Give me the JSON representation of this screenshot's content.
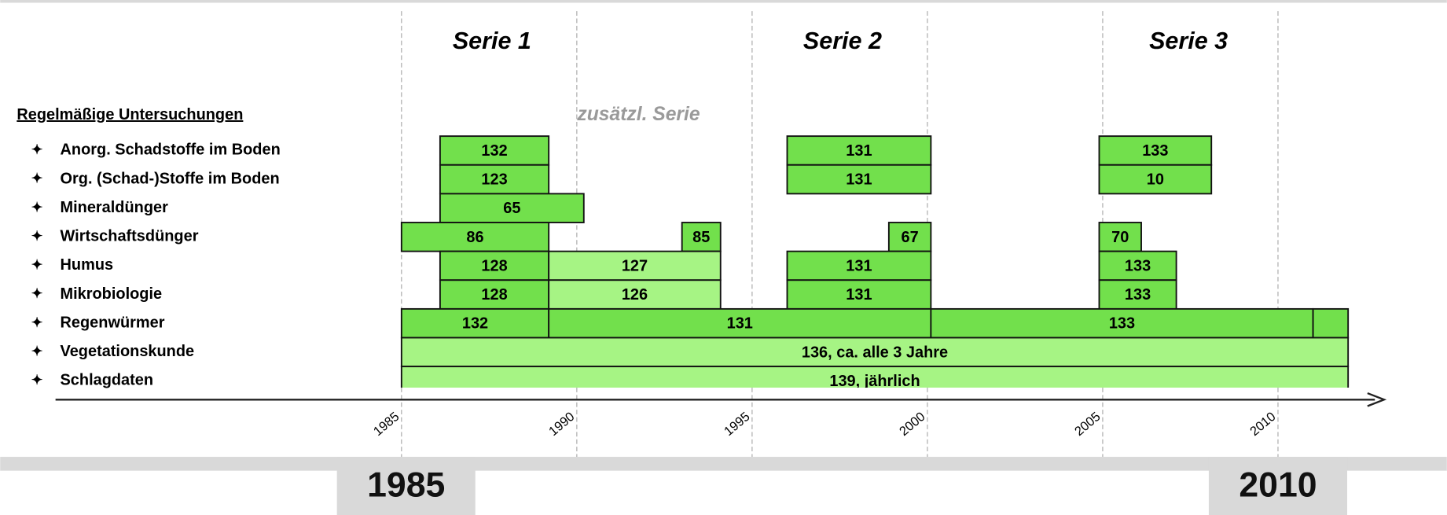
{
  "header": {
    "series_labels": [
      "Serie 1",
      "Serie 2",
      "Serie 3"
    ],
    "extra_series": "zusätzl. Serie",
    "section_title": "Regelmäßige Untersuchungen"
  },
  "timeline": {
    "xlim": [
      1985,
      2010
    ],
    "xticks": [
      1985,
      1990,
      1995,
      2000,
      2005,
      2010
    ],
    "rows": [
      {
        "label": "Anorg. Schadstoffe im Boden",
        "bars": [
          {
            "start": 1986.1,
            "end": 1989.2,
            "label": "132",
            "color": "#72e04c"
          },
          {
            "start": 1996.0,
            "end": 2000.1,
            "label": "131",
            "color": "#72e04c"
          },
          {
            "start": 2004.9,
            "end": 2008.1,
            "label": "133",
            "color": "#72e04c"
          }
        ]
      },
      {
        "label": "Org. (Schad-)Stoffe im Boden",
        "bars": [
          {
            "start": 1986.1,
            "end": 1989.2,
            "label": "123",
            "color": "#72e04c"
          },
          {
            "start": 1996.0,
            "end": 2000.1,
            "label": "131",
            "color": "#72e04c"
          },
          {
            "start": 2004.9,
            "end": 2008.1,
            "label": "10",
            "color": "#72e04c"
          }
        ]
      },
      {
        "label": "Mineraldünger",
        "bars": [
          {
            "start": 1986.1,
            "end": 1990.2,
            "label": "65",
            "color": "#72e04c"
          }
        ]
      },
      {
        "label": "Wirtschaftsdünger",
        "bars": [
          {
            "start": 1985.0,
            "end": 1989.2,
            "label": "86",
            "color": "#72e04c"
          },
          {
            "start": 1993.0,
            "end": 1994.1,
            "label": "85",
            "color": "#72e04c"
          },
          {
            "start": 1998.9,
            "end": 2000.1,
            "label": "67",
            "color": "#72e04c"
          },
          {
            "start": 2004.9,
            "end": 2006.1,
            "label": "70",
            "color": "#72e04c"
          }
        ]
      },
      {
        "label": "Humus",
        "bars": [
          {
            "start": 1986.1,
            "end": 1989.2,
            "label": "128",
            "color": "#72e04c"
          },
          {
            "start": 1989.2,
            "end": 1994.1,
            "label": "127",
            "color": "#a6f484"
          },
          {
            "start": 1996.0,
            "end": 2000.1,
            "label": "131",
            "color": "#72e04c"
          },
          {
            "start": 2004.9,
            "end": 2007.1,
            "label": "133",
            "color": "#72e04c"
          }
        ]
      },
      {
        "label": "Mikrobiologie",
        "bars": [
          {
            "start": 1986.1,
            "end": 1989.2,
            "label": "128",
            "color": "#72e04c"
          },
          {
            "start": 1989.2,
            "end": 1994.1,
            "label": "126",
            "color": "#a6f484"
          },
          {
            "start": 1996.0,
            "end": 2000.1,
            "label": "131",
            "color": "#72e04c"
          },
          {
            "start": 2004.9,
            "end": 2007.1,
            "label": "133",
            "color": "#72e04c"
          }
        ]
      },
      {
        "label": "Regenwürmer",
        "bars": [
          {
            "start": 1985.0,
            "end": 1989.2,
            "label": "132",
            "color": "#72e04c"
          },
          {
            "start": 1989.2,
            "end": 2000.1,
            "label": "131",
            "color": "#72e04c"
          },
          {
            "start": 2000.1,
            "end": 2011.0,
            "label": "133",
            "color": "#72e04c"
          },
          {
            "start": 2011.0,
            "end": 2012.0,
            "color": "#72e04c"
          }
        ]
      },
      {
        "label": "Vegetationskunde",
        "bars": [
          {
            "start": 1985.0,
            "end": 2012.0,
            "label": "136, ca. alle 3 Jahre",
            "color": "#a6f484"
          }
        ]
      },
      {
        "label": "Schlagdaten",
        "bars": [
          {
            "start": 1985.0,
            "end": 2012.0,
            "label": "139, jährlich",
            "color": "#a6f484"
          }
        ]
      }
    ]
  },
  "footer": {
    "start": "1985",
    "end": "2010"
  }
}
